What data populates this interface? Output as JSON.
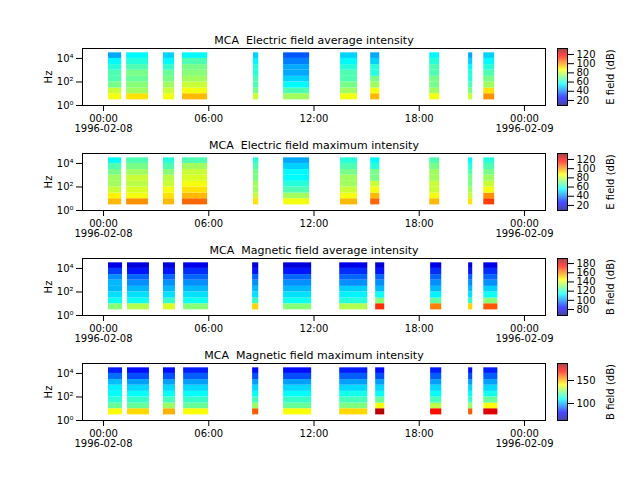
{
  "chart_data": [
    {
      "type": "heatmap",
      "title": "MCA  Electric field average intensity",
      "y_label": "Hz",
      "xlim": [
        "1996-02-07T22:48",
        "1996-02-09T01:12"
      ],
      "xticks": [
        {
          "value": "1996-02-08T00:00",
          "label": "00:00\n1996-02-08"
        },
        {
          "value": "1996-02-08T06:00",
          "label": "06:00"
        },
        {
          "value": "1996-02-08T12:00",
          "label": "12:00"
        },
        {
          "value": "1996-02-08T18:00",
          "label": "18:00"
        },
        {
          "value": "1996-02-09T00:00",
          "label": "00:00\n1996-02-09"
        }
      ],
      "log": "y",
      "ylim": [
        1,
        70000
      ],
      "yticks": [
        {
          "value": 1,
          "label": "10⁰"
        },
        {
          "value": 100,
          "label": "10²"
        },
        {
          "value": 10000,
          "label": "10⁴"
        }
      ],
      "freq_edges": [
        3,
        10,
        30,
        100,
        300,
        1000,
        3000,
        10000,
        30000
      ],
      "segments": [
        {
          "start": "1996-02-08T00:17",
          "end": "1996-02-08T01:02",
          "values": [
            85,
            80,
            70,
            65,
            65,
            60,
            55,
            45
          ]
        },
        {
          "start": "1996-02-08T01:19",
          "end": "1996-02-08T02:34",
          "values": [
            90,
            75,
            72,
            68,
            70,
            65,
            60,
            55
          ]
        },
        {
          "start": "1996-02-08T03:25",
          "end": "1996-02-08T04:03",
          "values": [
            85,
            80,
            75,
            70,
            68,
            62,
            55,
            50
          ]
        },
        {
          "start": "1996-02-08T04:30",
          "end": "1996-02-08T05:56",
          "values": [
            95,
            85,
            80,
            75,
            72,
            70,
            65,
            55
          ]
        },
        {
          "start": "1996-02-08T08:33",
          "end": "1996-02-08T08:51",
          "values": [
            80,
            70,
            65,
            65,
            60,
            60,
            55,
            50
          ]
        },
        {
          "start": "1996-02-08T10:16",
          "end": "1996-02-08T11:45",
          "values": [
            75,
            65,
            55,
            50,
            45,
            45,
            40,
            35
          ]
        },
        {
          "start": "1996-02-08T13:31",
          "end": "1996-02-08T14:29",
          "values": [
            85,
            75,
            70,
            65,
            65,
            60,
            55,
            50
          ]
        },
        {
          "start": "1996-02-08T15:14",
          "end": "1996-02-08T15:45",
          "values": [
            95,
            85,
            75,
            70,
            60,
            60,
            50,
            45
          ]
        },
        {
          "start": "1996-02-08T18:36",
          "end": "1996-02-08T19:10",
          "values": [
            85,
            75,
            70,
            70,
            65,
            65,
            60,
            55
          ]
        },
        {
          "start": "1996-02-08T20:49",
          "end": "1996-02-08T21:03",
          "values": [
            80,
            70,
            65,
            60,
            60,
            55,
            50,
            45
          ]
        },
        {
          "start": "1996-02-08T21:41",
          "end": "1996-02-08T22:18",
          "values": [
            100,
            90,
            75,
            70,
            65,
            60,
            55,
            50
          ]
        }
      ],
      "colorbar": {
        "label": "E field (dB)",
        "range": [
          9,
          133
        ],
        "ticks": [
          20,
          40,
          60,
          80,
          100,
          120
        ]
      }
    },
    {
      "type": "heatmap",
      "title": "MCA  Electric field maximum intensity",
      "y_label": "Hz",
      "xlim": [
        "1996-02-07T22:48",
        "1996-02-09T01:12"
      ],
      "xticks": [
        {
          "value": "1996-02-08T00:00",
          "label": "00:00\n1996-02-08"
        },
        {
          "value": "1996-02-08T06:00",
          "label": "06:00"
        },
        {
          "value": "1996-02-08T12:00",
          "label": "12:00"
        },
        {
          "value": "1996-02-08T18:00",
          "label": "18:00"
        },
        {
          "value": "1996-02-09T00:00",
          "label": "00:00\n1996-02-09"
        }
      ],
      "log": "y",
      "ylim": [
        1,
        70000
      ],
      "yticks": [
        {
          "value": 1,
          "label": "10⁰"
        },
        {
          "value": 100,
          "label": "10²"
        },
        {
          "value": 10000,
          "label": "10⁴"
        }
      ],
      "freq_edges": [
        3,
        10,
        30,
        100,
        300,
        1000,
        3000,
        10000,
        30000
      ],
      "segments": [
        {
          "start": "1996-02-08T00:17",
          "end": "1996-02-08T01:02",
          "values": [
            95,
            88,
            80,
            75,
            75,
            70,
            65,
            55
          ]
        },
        {
          "start": "1996-02-08T01:19",
          "end": "1996-02-08T02:34",
          "values": [
            100,
            85,
            82,
            78,
            80,
            75,
            70,
            65
          ]
        },
        {
          "start": "1996-02-08T03:25",
          "end": "1996-02-08T04:03",
          "values": [
            95,
            90,
            85,
            80,
            78,
            72,
            65,
            60
          ]
        },
        {
          "start": "1996-02-08T04:30",
          "end": "1996-02-08T05:56",
          "values": [
            105,
            95,
            90,
            85,
            82,
            80,
            75,
            65
          ]
        },
        {
          "start": "1996-02-08T08:33",
          "end": "1996-02-08T08:51",
          "values": [
            90,
            80,
            75,
            75,
            70,
            70,
            65,
            60
          ]
        },
        {
          "start": "1996-02-08T10:16",
          "end": "1996-02-08T11:45",
          "values": [
            85,
            75,
            65,
            60,
            55,
            55,
            50,
            45
          ]
        },
        {
          "start": "1996-02-08T13:31",
          "end": "1996-02-08T14:29",
          "values": [
            95,
            85,
            80,
            75,
            75,
            70,
            65,
            60
          ]
        },
        {
          "start": "1996-02-08T15:14",
          "end": "1996-02-08T15:45",
          "values": [
            105,
            95,
            85,
            80,
            70,
            70,
            60,
            55
          ]
        },
        {
          "start": "1996-02-08T18:36",
          "end": "1996-02-08T19:10",
          "values": [
            95,
            85,
            80,
            80,
            75,
            75,
            70,
            65
          ]
        },
        {
          "start": "1996-02-08T20:49",
          "end": "1996-02-08T21:03",
          "values": [
            90,
            80,
            75,
            70,
            70,
            65,
            60,
            55
          ]
        },
        {
          "start": "1996-02-08T21:41",
          "end": "1996-02-08T22:18",
          "values": [
            110,
            100,
            85,
            80,
            75,
            70,
            65,
            60
          ]
        }
      ],
      "colorbar": {
        "label": "E field (dB)",
        "range": [
          9,
          133
        ],
        "ticks": [
          20,
          40,
          60,
          80,
          100,
          120
        ]
      }
    },
    {
      "type": "heatmap",
      "title": "MCA  Magnetic field average intensity",
      "y_label": "Hz",
      "xlim": [
        "1996-02-07T22:48",
        "1996-02-09T01:12"
      ],
      "xticks": [
        {
          "value": "1996-02-08T00:00",
          "label": "00:00\n1996-02-08"
        },
        {
          "value": "1996-02-08T06:00",
          "label": "06:00"
        },
        {
          "value": "1996-02-08T12:00",
          "label": "12:00"
        },
        {
          "value": "1996-02-08T18:00",
          "label": "18:00"
        },
        {
          "value": "1996-02-09T00:00",
          "label": "00:00\n1996-02-09"
        }
      ],
      "log": "y",
      "ylim": [
        1,
        70000
      ],
      "yticks": [
        {
          "value": 1,
          "label": "10⁰"
        },
        {
          "value": 100,
          "label": "10²"
        },
        {
          "value": 10000,
          "label": "10⁴"
        }
      ],
      "freq_edges": [
        3,
        10,
        30,
        100,
        300,
        1000,
        3000,
        10000,
        30000
      ],
      "segments": [
        {
          "start": "1996-02-08T00:17",
          "end": "1996-02-08T01:05",
          "values": [
            130,
            115,
            110,
            105,
            105,
            100,
            90,
            80
          ]
        },
        {
          "start": "1996-02-08T01:22",
          "end": "1996-02-08T02:37",
          "values": [
            135,
            115,
            110,
            105,
            100,
            95,
            85,
            78
          ]
        },
        {
          "start": "1996-02-08T03:25",
          "end": "1996-02-08T04:06",
          "values": [
            140,
            120,
            110,
            105,
            100,
            95,
            85,
            78
          ]
        },
        {
          "start": "1996-02-08T04:34",
          "end": "1996-02-08T05:59",
          "values": [
            130,
            115,
            110,
            105,
            100,
            95,
            88,
            80
          ]
        },
        {
          "start": "1996-02-08T08:30",
          "end": "1996-02-08T08:51",
          "values": [
            150,
            120,
            110,
            105,
            100,
            95,
            85,
            78
          ]
        },
        {
          "start": "1996-02-08T10:16",
          "end": "1996-02-08T11:52",
          "values": [
            130,
            115,
            110,
            105,
            100,
            95,
            85,
            78
          ]
        },
        {
          "start": "1996-02-08T13:28",
          "end": "1996-02-08T15:04",
          "values": [
            135,
            118,
            112,
            108,
            100,
            95,
            88,
            80
          ]
        },
        {
          "start": "1996-02-08T15:31",
          "end": "1996-02-08T16:02",
          "values": [
            170,
            130,
            115,
            105,
            100,
            95,
            85,
            78
          ]
        },
        {
          "start": "1996-02-08T18:39",
          "end": "1996-02-08T19:17",
          "values": [
            160,
            125,
            112,
            105,
            100,
            95,
            88,
            80
          ]
        },
        {
          "start": "1996-02-08T20:49",
          "end": "1996-02-08T21:03",
          "values": [
            150,
            120,
            110,
            105,
            100,
            95,
            85,
            78
          ]
        },
        {
          "start": "1996-02-08T21:41",
          "end": "1996-02-08T22:29",
          "values": [
            165,
            130,
            115,
            108,
            100,
            95,
            88,
            80
          ]
        }
      ],
      "colorbar": {
        "label": "B field (dB)",
        "range": [
          67,
          191
        ],
        "ticks": [
          80,
          100,
          120,
          140,
          160,
          180
        ]
      }
    },
    {
      "type": "heatmap",
      "title": "MCA  Magnetic field maximum intensity",
      "y_label": "Hz",
      "xlim": [
        "1996-02-07T22:48",
        "1996-02-09T01:12"
      ],
      "xticks": [
        {
          "value": "1996-02-08T00:00",
          "label": "00:00\n1996-02-08"
        },
        {
          "value": "1996-02-08T06:00",
          "label": "06:00"
        },
        {
          "value": "1996-02-08T12:00",
          "label": "12:00"
        },
        {
          "value": "1996-02-08T18:00",
          "label": "18:00"
        },
        {
          "value": "1996-02-09T00:00",
          "label": "00:00\n1996-02-09"
        }
      ],
      "log": "y",
      "ylim": [
        1,
        70000
      ],
      "yticks": [
        {
          "value": 1,
          "label": "10⁰"
        },
        {
          "value": 100,
          "label": "10²"
        },
        {
          "value": 10000,
          "label": "10⁴"
        }
      ],
      "freq_edges": [
        3,
        10,
        30,
        100,
        300,
        1000,
        3000,
        10000,
        30000
      ],
      "segments": [
        {
          "start": "1996-02-08T00:17",
          "end": "1996-02-08T01:05",
          "values": [
            140,
            122,
            115,
            110,
            108,
            102,
            92,
            82
          ]
        },
        {
          "start": "1996-02-08T01:22",
          "end": "1996-02-08T02:37",
          "values": [
            145,
            122,
            116,
            110,
            105,
            98,
            88,
            80
          ]
        },
        {
          "start": "1996-02-08T03:25",
          "end": "1996-02-08T04:06",
          "values": [
            150,
            128,
            118,
            110,
            105,
            98,
            88,
            80
          ]
        },
        {
          "start": "1996-02-08T04:34",
          "end": "1996-02-08T05:59",
          "values": [
            140,
            122,
            116,
            110,
            105,
            98,
            90,
            82
          ]
        },
        {
          "start": "1996-02-08T08:30",
          "end": "1996-02-08T08:51",
          "values": [
            160,
            128,
            118,
            110,
            105,
            98,
            88,
            80
          ]
        },
        {
          "start": "1996-02-08T10:16",
          "end": "1996-02-08T11:52",
          "values": [
            140,
            122,
            116,
            110,
            105,
            98,
            88,
            80
          ]
        },
        {
          "start": "1996-02-08T13:28",
          "end": "1996-02-08T15:04",
          "values": [
            145,
            125,
            118,
            112,
            105,
            98,
            90,
            82
          ]
        },
        {
          "start": "1996-02-08T15:31",
          "end": "1996-02-08T16:02",
          "values": [
            180,
            140,
            122,
            110,
            105,
            98,
            88,
            80
          ]
        },
        {
          "start": "1996-02-08T18:39",
          "end": "1996-02-08T19:17",
          "values": [
            170,
            132,
            118,
            110,
            105,
            98,
            90,
            82
          ]
        },
        {
          "start": "1996-02-08T20:49",
          "end": "1996-02-08T21:03",
          "values": [
            160,
            128,
            116,
            110,
            105,
            98,
            88,
            80
          ]
        },
        {
          "start": "1996-02-08T21:41",
          "end": "1996-02-08T22:29",
          "values": [
            175,
            140,
            122,
            112,
            105,
            98,
            90,
            82
          ]
        }
      ],
      "colorbar": {
        "label": "B field (dB)",
        "range": [
          63,
          187
        ],
        "ticks": [
          100,
          150
        ]
      }
    }
  ]
}
